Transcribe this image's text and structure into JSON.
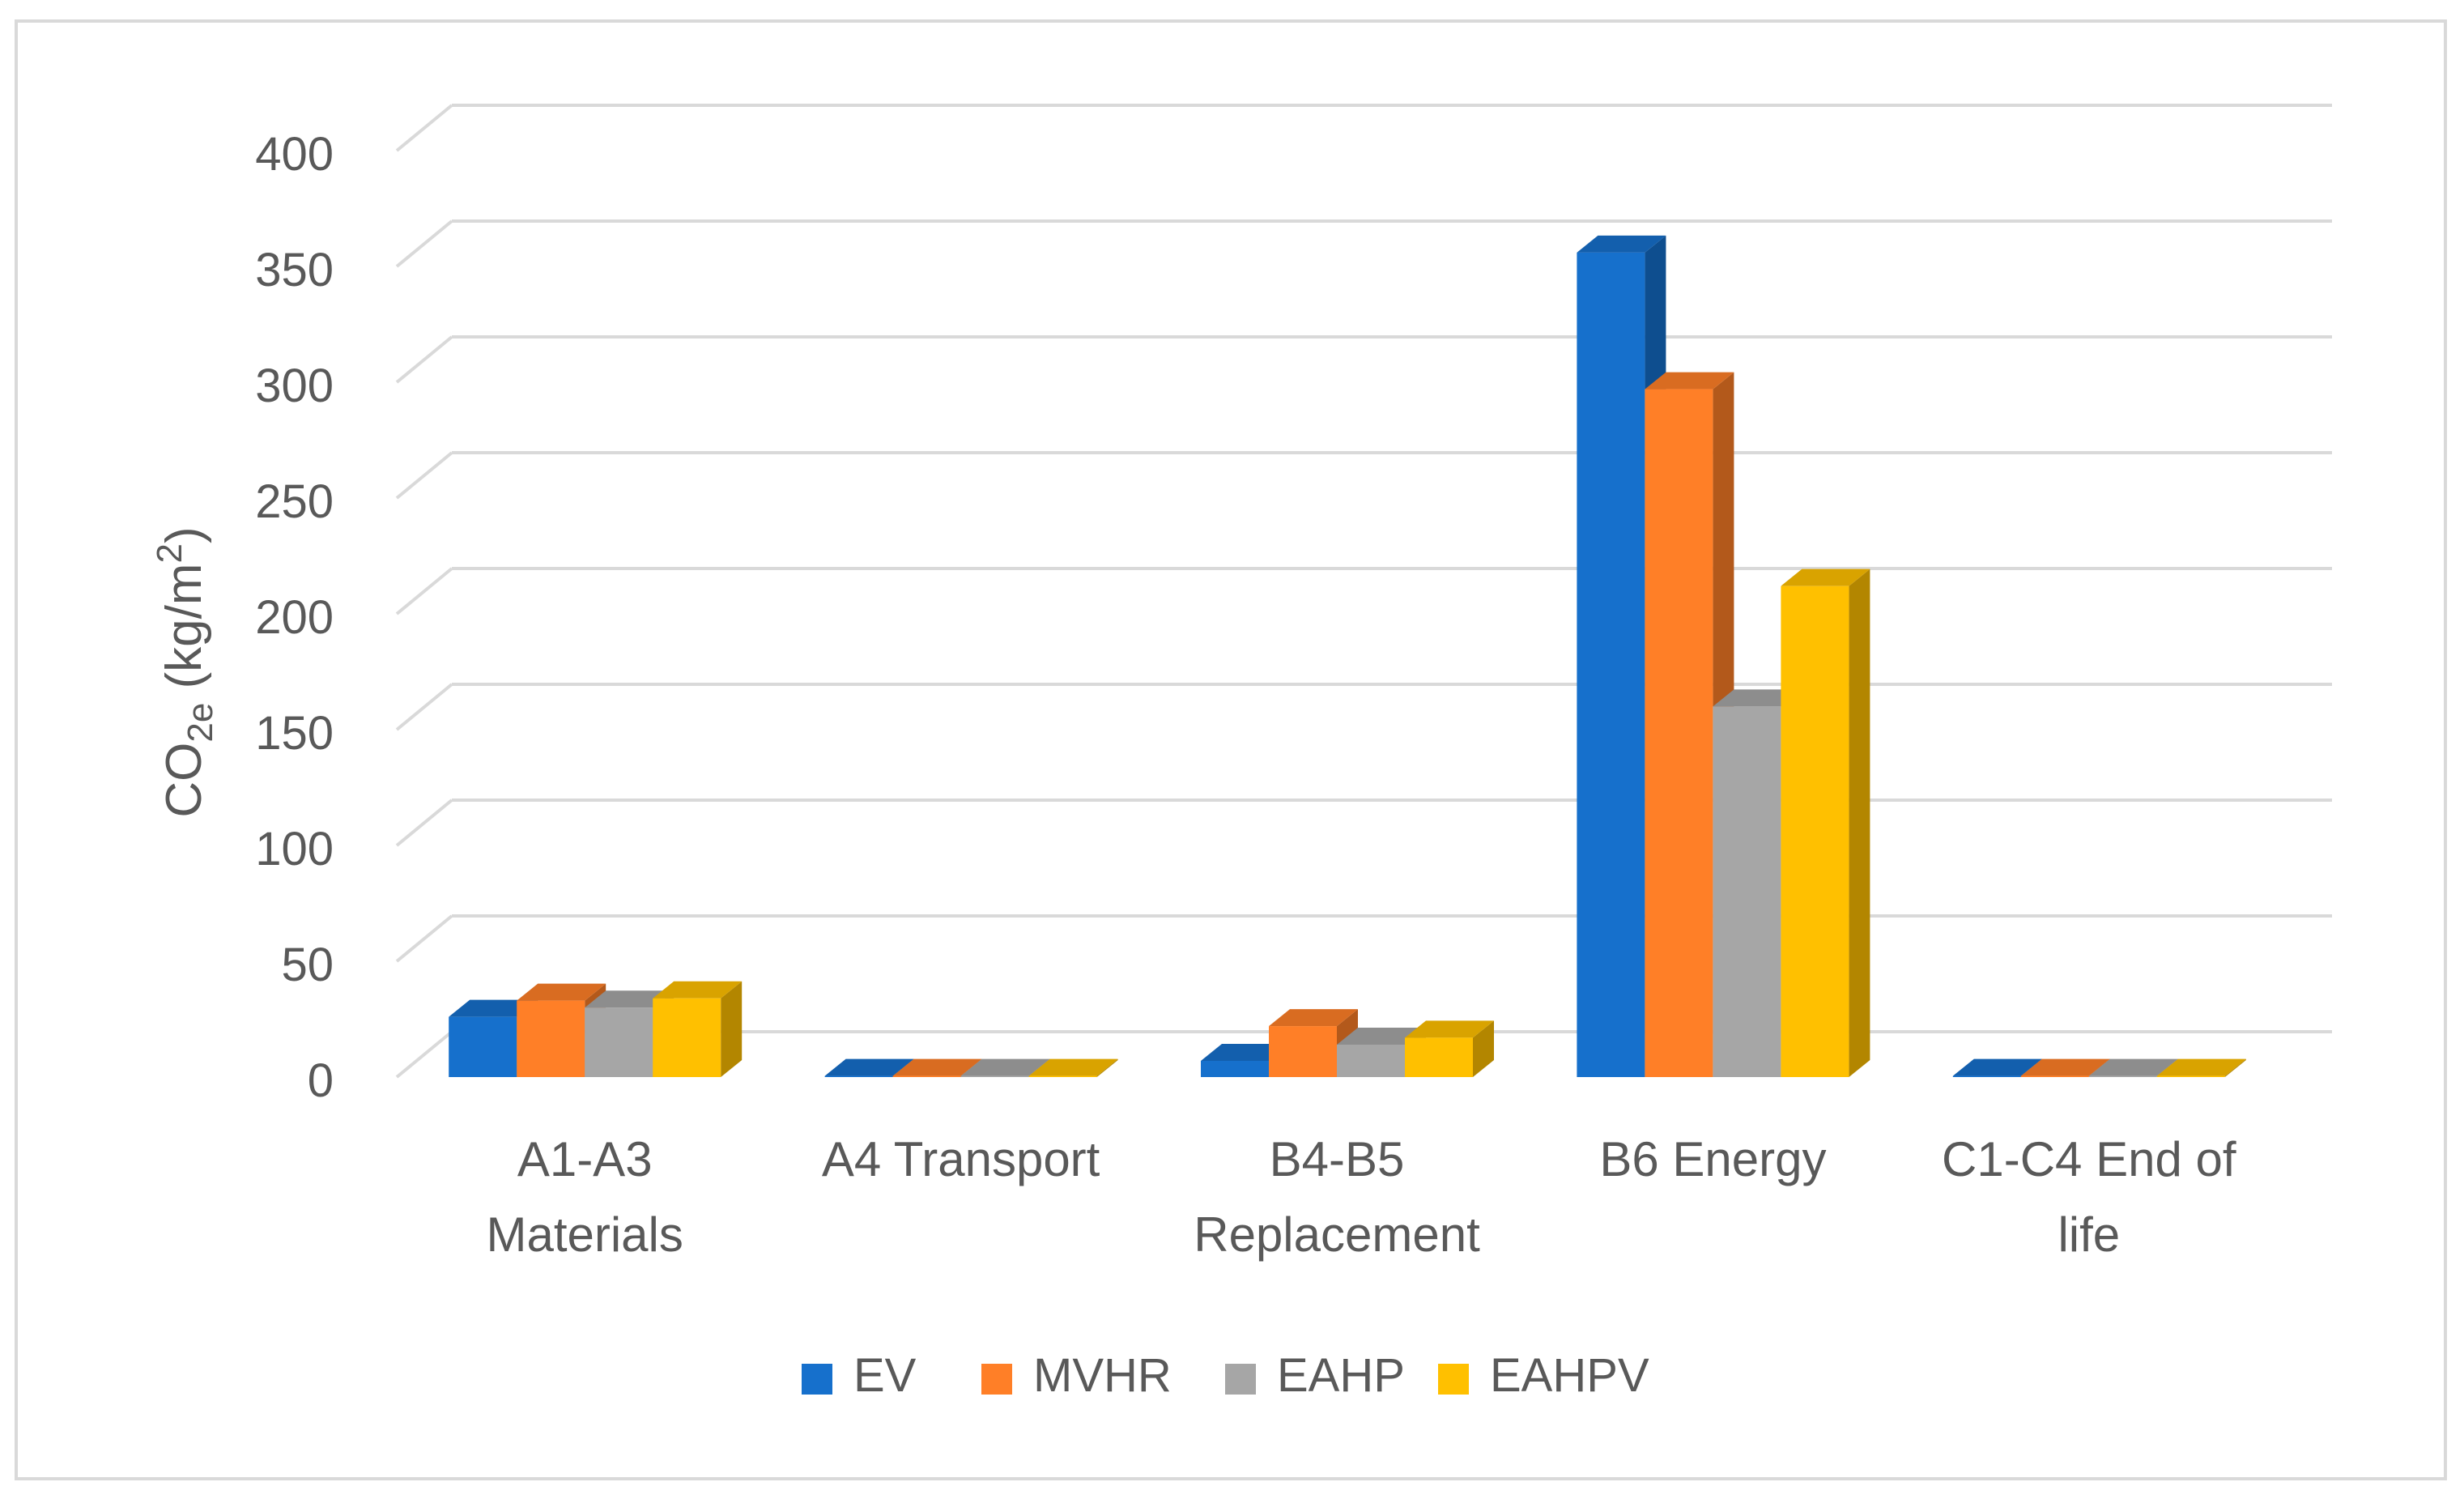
{
  "chart_data": {
    "type": "bar",
    "style": "3d-clustered-column",
    "title": "",
    "categories": [
      [
        "A1-A3",
        "Materials"
      ],
      [
        "A4 Transport"
      ],
      [
        "B4-B5",
        "Replacement"
      ],
      [
        "B6 Energy"
      ],
      [
        "C1-C4 End of",
        "life"
      ]
    ],
    "series": [
      {
        "name": "EV",
        "color": "#1670CC",
        "side_color": "#0E4E8F",
        "top_color": "#135FAD",
        "values": [
          26,
          0.5,
          7,
          356,
          0.5
        ]
      },
      {
        "name": "MVHR",
        "color": "#FF7F27",
        "side_color": "#B3591B",
        "top_color": "#D96C21",
        "values": [
          33,
          0.5,
          22,
          297,
          0.5
        ]
      },
      {
        "name": "EAHP",
        "color": "#A6A6A6",
        "side_color": "#747474",
        "top_color": "#8D8D8D",
        "values": [
          30,
          0.5,
          14,
          160,
          0.5
        ]
      },
      {
        "name": "EAHPV",
        "color": "#FFC000",
        "side_color": "#B38600",
        "top_color": "#D9A300",
        "values": [
          34,
          0.5,
          17,
          212,
          0.5
        ]
      }
    ],
    "ylabel": {
      "main": "CO",
      "sub": "2e",
      "rest": " (kg/m",
      "sup": "2",
      "close": ")"
    },
    "yticks": [
      0,
      50,
      100,
      150,
      200,
      250,
      300,
      350,
      400
    ],
    "ylim": [
      0,
      400
    ],
    "grid": true,
    "legend_position": "bottom"
  }
}
